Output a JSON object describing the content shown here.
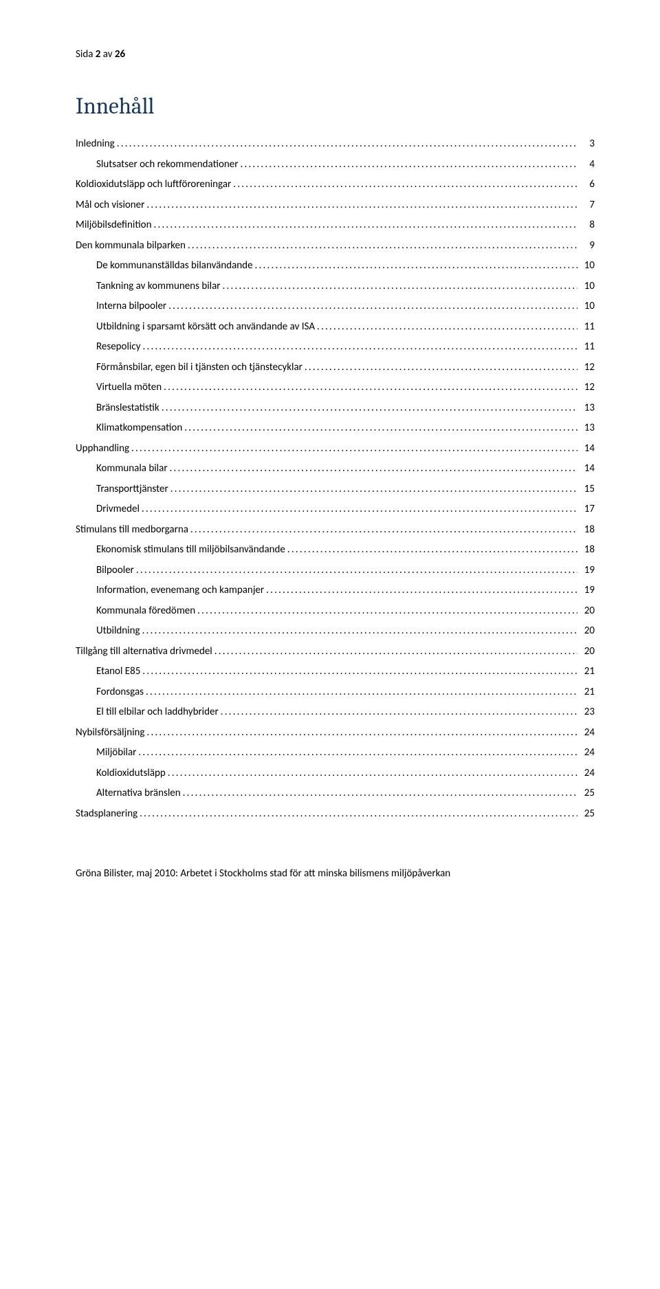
{
  "header": {
    "prefix": "Sida ",
    "current": "2",
    "mid": " av ",
    "total": "26"
  },
  "toc_title": "Innehåll",
  "toc": [
    {
      "level": 0,
      "label": "Inledning",
      "page": "3"
    },
    {
      "level": 1,
      "label": "Slutsatser och rekommendationer",
      "page": "4"
    },
    {
      "level": 0,
      "label": "Koldioxidutsläpp och luftföroreningar",
      "page": "6"
    },
    {
      "level": 0,
      "label": "Mål och visioner",
      "page": "7"
    },
    {
      "level": 0,
      "label": "Miljöbilsdefinition",
      "page": "8"
    },
    {
      "level": 0,
      "label": "Den kommunala bilparken",
      "page": "9"
    },
    {
      "level": 1,
      "label": "De kommunanställdas bilanvändande",
      "page": "10"
    },
    {
      "level": 1,
      "label": "Tankning av kommunens bilar",
      "page": "10"
    },
    {
      "level": 1,
      "label": "Interna bilpooler",
      "page": "10"
    },
    {
      "level": 1,
      "label": "Utbildning i sparsamt körsätt och användande av ISA",
      "page": "11"
    },
    {
      "level": 1,
      "label": "Resepolicy",
      "page": "11"
    },
    {
      "level": 1,
      "label": "Förmånsbilar, egen bil i tjänsten och tjänstecyklar",
      "page": "12"
    },
    {
      "level": 1,
      "label": "Virtuella möten",
      "page": "12"
    },
    {
      "level": 1,
      "label": "Bränslestatistik",
      "page": "13"
    },
    {
      "level": 1,
      "label": "Klimatkompensation",
      "page": "13"
    },
    {
      "level": 0,
      "label": "Upphandling",
      "page": "14"
    },
    {
      "level": 1,
      "label": "Kommunala bilar",
      "page": "14"
    },
    {
      "level": 1,
      "label": "Transporttjänster",
      "page": "15"
    },
    {
      "level": 1,
      "label": "Drivmedel",
      "page": "17"
    },
    {
      "level": 0,
      "label": "Stimulans till medborgarna",
      "page": "18"
    },
    {
      "level": 1,
      "label": "Ekonomisk stimulans till miljöbilsanvändande",
      "page": "18"
    },
    {
      "level": 1,
      "label": "Bilpooler",
      "page": "19"
    },
    {
      "level": 1,
      "label": "Information, evenemang och kampanjer",
      "page": "19"
    },
    {
      "level": 1,
      "label": "Kommunala föredömen",
      "page": "20"
    },
    {
      "level": 1,
      "label": "Utbildning",
      "page": "20"
    },
    {
      "level": 0,
      "label": "Tillgång till alternativa drivmedel",
      "page": "20"
    },
    {
      "level": 1,
      "label": "Etanol E85",
      "page": "21"
    },
    {
      "level": 1,
      "label": "Fordonsgas",
      "page": "21"
    },
    {
      "level": 1,
      "label": "El till elbilar och laddhybrider",
      "page": "23"
    },
    {
      "level": 0,
      "label": "Nybilsförsäljning",
      "page": "24"
    },
    {
      "level": 1,
      "label": "Miljöbilar",
      "page": "24"
    },
    {
      "level": 1,
      "label": "Koldioxidutsläpp",
      "page": "24"
    },
    {
      "level": 1,
      "label": "Alternativa bränslen",
      "page": "25"
    },
    {
      "level": 0,
      "label": "Stadsplanering",
      "page": "25"
    }
  ],
  "footer": "Gröna Bilister, maj 2010: Arbetet i Stockholms stad för att minska bilismens miljöpåverkan"
}
